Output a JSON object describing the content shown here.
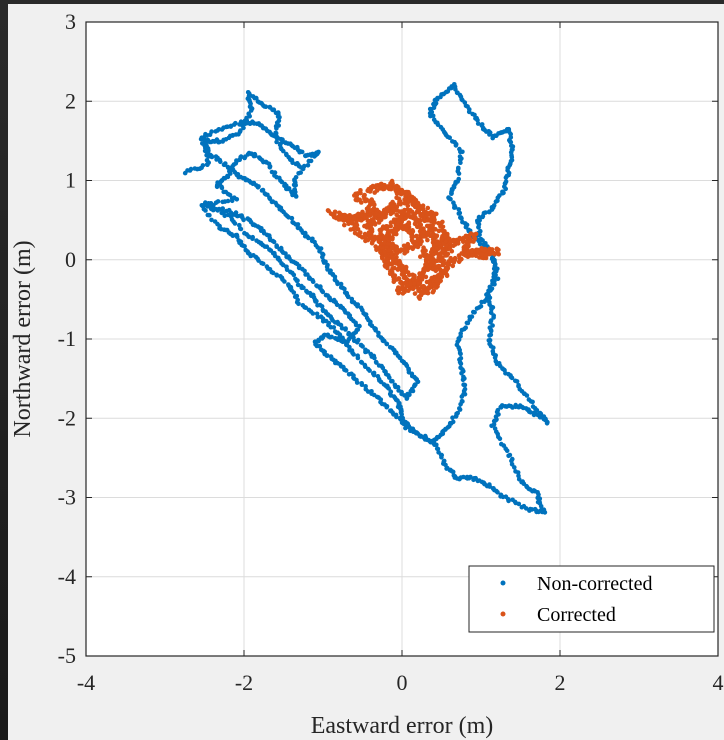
{
  "chart_data": {
    "type": "scatter",
    "title": "",
    "xlabel": "Eastward error (m)",
    "ylabel": "Northward error (m)",
    "xlim": [
      -4,
      4
    ],
    "ylim": [
      -5,
      3
    ],
    "xticks": [
      "-4",
      "-2",
      "0",
      "2",
      "4"
    ],
    "yticks": [
      "-5",
      "-4",
      "-3",
      "-2",
      "-1",
      "0",
      "1",
      "2",
      "3"
    ],
    "grid": true,
    "legend_position": "bottom-right",
    "series": [
      {
        "name": "Non-corrected",
        "color": "#0072BD",
        "path": [
          [
            -2.75,
            1.1
          ],
          [
            -2.45,
            1.2
          ],
          [
            -2.5,
            1.5
          ],
          [
            -2.3,
            1.5
          ],
          [
            -2.05,
            1.6
          ],
          [
            -1.9,
            1.9
          ],
          [
            -1.95,
            2.1
          ],
          [
            -1.75,
            1.95
          ],
          [
            -1.55,
            1.85
          ],
          [
            -1.6,
            1.55
          ],
          [
            -1.4,
            1.45
          ],
          [
            -1.2,
            1.3
          ],
          [
            -1.05,
            1.35
          ],
          [
            -1.35,
            1.05
          ],
          [
            -1.35,
            0.8
          ],
          [
            -1.5,
            0.95
          ],
          [
            -1.7,
            1.2
          ],
          [
            -1.9,
            1.35
          ],
          [
            -2.1,
            1.25
          ],
          [
            -2.2,
            1.05
          ],
          [
            -2.35,
            0.95
          ],
          [
            -2.1,
            0.75
          ],
          [
            -2.55,
            0.7
          ],
          [
            -2.3,
            0.4
          ],
          [
            -2.1,
            0.3
          ],
          [
            -1.95,
            0.1
          ],
          [
            -1.7,
            -0.1
          ],
          [
            -1.45,
            -0.3
          ],
          [
            -1.3,
            -0.55
          ],
          [
            -1.0,
            -0.75
          ],
          [
            -0.8,
            -0.95
          ],
          [
            -0.65,
            -1.15
          ],
          [
            -0.4,
            -1.4
          ],
          [
            -0.2,
            -1.6
          ],
          [
            -0.05,
            -1.8
          ],
          [
            0.0,
            -2.0
          ],
          [
            0.2,
            -2.2
          ],
          [
            0.45,
            -2.35
          ],
          [
            0.55,
            -2.6
          ],
          [
            0.7,
            -2.75
          ],
          [
            0.9,
            -2.75
          ],
          [
            1.1,
            -2.85
          ],
          [
            1.3,
            -3.0
          ],
          [
            1.6,
            -3.15
          ],
          [
            1.8,
            -3.18
          ],
          [
            1.7,
            -2.95
          ],
          [
            1.5,
            -2.8
          ],
          [
            1.35,
            -2.45
          ],
          [
            1.15,
            -2.1
          ],
          [
            1.25,
            -1.85
          ],
          [
            1.5,
            -1.85
          ],
          [
            1.7,
            -1.95
          ],
          [
            1.85,
            -2.05
          ],
          [
            1.6,
            -1.75
          ],
          [
            1.4,
            -1.5
          ],
          [
            1.2,
            -1.3
          ],
          [
            1.1,
            -1.0
          ],
          [
            1.15,
            -0.7
          ],
          [
            1.1,
            -0.4
          ],
          [
            1.2,
            -0.1
          ],
          [
            1.1,
            0.1
          ],
          [
            0.85,
            0.35
          ],
          [
            0.75,
            0.55
          ],
          [
            0.6,
            0.8
          ],
          [
            0.7,
            1.0
          ],
          [
            0.75,
            1.35
          ],
          [
            0.55,
            1.6
          ],
          [
            0.35,
            1.85
          ],
          [
            0.45,
            2.05
          ],
          [
            0.65,
            2.2
          ],
          [
            0.8,
            1.95
          ],
          [
            1.0,
            1.7
          ],
          [
            1.15,
            1.55
          ],
          [
            1.35,
            1.65
          ],
          [
            1.4,
            1.4
          ],
          [
            1.35,
            1.15
          ],
          [
            1.3,
            0.9
          ],
          [
            1.15,
            0.65
          ],
          [
            0.95,
            0.5
          ],
          [
            1.0,
            0.25
          ],
          [
            1.15,
            0.05
          ],
          [
            1.2,
            -0.25
          ],
          [
            1.05,
            -0.5
          ],
          [
            0.85,
            -0.75
          ],
          [
            0.7,
            -1.05
          ],
          [
            0.75,
            -1.35
          ],
          [
            0.8,
            -1.65
          ],
          [
            0.7,
            -1.95
          ],
          [
            0.55,
            -2.15
          ],
          [
            0.4,
            -2.3
          ],
          [
            0.1,
            -2.15
          ],
          [
            -0.1,
            -1.95
          ],
          [
            -0.3,
            -1.75
          ],
          [
            -0.55,
            -1.55
          ],
          [
            -0.75,
            -1.35
          ],
          [
            -0.95,
            -1.2
          ],
          [
            -1.1,
            -1.05
          ],
          [
            -0.95,
            -0.95
          ],
          [
            -0.7,
            -1.05
          ],
          [
            -0.55,
            -0.85
          ],
          [
            -0.75,
            -0.6
          ],
          [
            -0.95,
            -0.45
          ],
          [
            -1.15,
            -0.25
          ],
          [
            -1.35,
            -0.05
          ],
          [
            -1.55,
            0.15
          ],
          [
            -1.75,
            0.35
          ],
          [
            -1.95,
            0.5
          ],
          [
            -2.15,
            0.6
          ],
          [
            -2.5,
            0.7
          ],
          [
            -2.2,
            0.55
          ],
          [
            -1.95,
            0.3
          ],
          [
            -1.7,
            0.15
          ],
          [
            -1.5,
            -0.05
          ],
          [
            -1.3,
            -0.3
          ],
          [
            -1.1,
            -0.5
          ],
          [
            -0.95,
            -0.7
          ],
          [
            -0.75,
            -0.85
          ],
          [
            -0.55,
            -1.05
          ],
          [
            -0.35,
            -1.25
          ],
          [
            -0.15,
            -1.5
          ],
          [
            0.05,
            -1.75
          ],
          [
            0.2,
            -1.55
          ],
          [
            0.05,
            -1.35
          ],
          [
            -0.1,
            -1.15
          ],
          [
            -0.3,
            -0.95
          ],
          [
            -0.45,
            -0.7
          ],
          [
            -0.65,
            -0.5
          ],
          [
            -0.8,
            -0.3
          ],
          [
            -0.95,
            -0.1
          ],
          [
            -1.05,
            0.15
          ],
          [
            -1.25,
            0.35
          ],
          [
            -1.45,
            0.55
          ],
          [
            -1.65,
            0.75
          ],
          [
            -1.85,
            0.95
          ],
          [
            -2.05,
            1.05
          ],
          [
            -2.25,
            1.2
          ],
          [
            -2.45,
            1.35
          ],
          [
            -2.55,
            1.55
          ],
          [
            -2.25,
            1.65
          ],
          [
            -2.0,
            1.75
          ],
          [
            -1.8,
            1.7
          ],
          [
            -1.6,
            1.55
          ],
          [
            -1.45,
            1.3
          ],
          [
            -1.25,
            1.15
          ]
        ]
      },
      {
        "name": "Corrected",
        "color": "#D95319",
        "path": [
          [
            -0.9,
            0.6
          ],
          [
            -0.7,
            0.5
          ],
          [
            -0.5,
            0.55
          ],
          [
            -0.35,
            0.7
          ],
          [
            -0.6,
            0.8
          ],
          [
            -0.3,
            0.9
          ],
          [
            -0.15,
            0.95
          ],
          [
            0.0,
            0.85
          ],
          [
            0.15,
            0.75
          ],
          [
            0.25,
            0.6
          ],
          [
            0.35,
            0.45
          ],
          [
            0.4,
            0.3
          ],
          [
            0.45,
            0.15
          ],
          [
            0.35,
            0.0
          ],
          [
            0.3,
            -0.15
          ],
          [
            0.15,
            -0.3
          ],
          [
            0.0,
            -0.4
          ],
          [
            -0.1,
            -0.2
          ],
          [
            -0.2,
            0.0
          ],
          [
            -0.3,
            0.15
          ],
          [
            -0.15,
            0.3
          ],
          [
            -0.05,
            0.45
          ],
          [
            0.05,
            0.6
          ],
          [
            0.2,
            0.5
          ],
          [
            0.3,
            0.3
          ],
          [
            0.15,
            0.2
          ],
          [
            0.0,
            0.1
          ],
          [
            -0.15,
            0.2
          ],
          [
            -0.35,
            0.3
          ],
          [
            -0.45,
            0.45
          ],
          [
            -0.25,
            0.55
          ],
          [
            -0.1,
            0.65
          ],
          [
            0.1,
            0.4
          ],
          [
            0.25,
            0.1
          ],
          [
            0.4,
            -0.1
          ],
          [
            0.5,
            0.05
          ],
          [
            0.55,
            0.3
          ],
          [
            0.4,
            0.55
          ],
          [
            0.2,
            0.7
          ],
          [
            -0.05,
            0.75
          ],
          [
            -0.2,
            0.6
          ],
          [
            -0.4,
            0.6
          ],
          [
            -0.6,
            0.5
          ],
          [
            -0.8,
            0.55
          ],
          [
            -0.55,
            0.35
          ],
          [
            -0.3,
            0.2
          ],
          [
            -0.1,
            0.0
          ],
          [
            0.1,
            -0.2
          ],
          [
            0.3,
            -0.35
          ],
          [
            0.45,
            -0.2
          ],
          [
            0.6,
            0.05
          ],
          [
            0.5,
            0.25
          ],
          [
            0.7,
            0.2
          ],
          [
            0.9,
            0.3
          ],
          [
            0.8,
            0.15
          ],
          [
            1.0,
            0.05
          ],
          [
            1.2,
            0.1
          ],
          [
            0.9,
            0.1
          ],
          [
            0.65,
            0.0
          ],
          [
            0.45,
            -0.3
          ],
          [
            0.25,
            -0.45
          ],
          [
            0.05,
            -0.25
          ],
          [
            -0.1,
            0.05
          ],
          [
            -0.25,
            0.35
          ],
          [
            -0.05,
            0.5
          ],
          [
            0.15,
            0.3
          ]
        ]
      }
    ]
  },
  "legend": {
    "entries": [
      "Non-corrected",
      "Corrected"
    ]
  }
}
